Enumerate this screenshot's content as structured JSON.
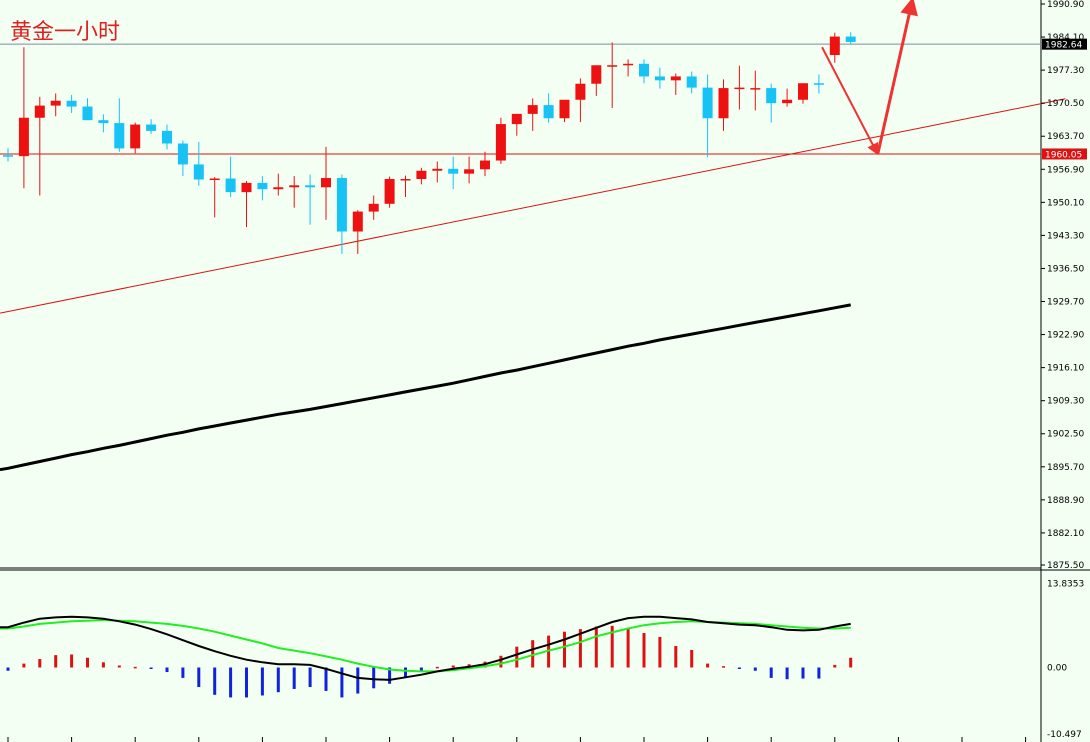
{
  "title": "黄金一小时",
  "colors": {
    "background": "#f2fff2",
    "bull": "#ee1111",
    "bear": "#17c2f5",
    "ma": "#000000",
    "annotation": "#ee3333",
    "macd_up": "#dd1111",
    "macd_down": "#1122dd",
    "signal": "#22ee22",
    "macd_line": "#000000"
  },
  "price_axis": {
    "ticks": [
      "1990.90",
      "1984.10",
      "1977.30",
      "1970.50",
      "1963.70",
      "1956.90",
      "1950.10",
      "1943.30",
      "1936.50",
      "1929.70",
      "1922.90",
      "1916.10",
      "1909.30",
      "1902.50",
      "1895.70",
      "1888.90",
      "1882.10",
      "1875.50"
    ],
    "current_price": "1982.64",
    "level_price": "1960.05"
  },
  "indicator_axis": {
    "ticks": [
      "13.8353",
      "0.00",
      "-10.497"
    ]
  },
  "chart_data": {
    "type": "candlestick",
    "title": "黄金一小时",
    "ylim": [
      1875.5,
      1992.0
    ],
    "candles": [
      [
        1959.8,
        1961.2,
        1958.5,
        1959.6
      ],
      [
        1959.6,
        1982.0,
        1953.0,
        1967.5
      ],
      [
        1967.5,
        1971.8,
        1951.5,
        1970.0
      ],
      [
        1970.0,
        1972.5,
        1967.8,
        1971.0
      ],
      [
        1971.0,
        1972.2,
        1968.5,
        1969.8
      ],
      [
        1969.8,
        1971.5,
        1967.0,
        1967.0
      ],
      [
        1967.0,
        1968.2,
        1964.5,
        1966.4
      ],
      [
        1966.4,
        1971.5,
        1960.5,
        1961.2
      ],
      [
        1961.2,
        1966.5,
        1960.2,
        1966.1
      ],
      [
        1966.1,
        1967.2,
        1964.2,
        1964.8
      ],
      [
        1964.8,
        1966.1,
        1961.0,
        1962.2
      ],
      [
        1962.2,
        1962.8,
        1955.5,
        1957.9
      ],
      [
        1957.9,
        1962.5,
        1953.5,
        1954.8
      ],
      [
        1954.8,
        1955.3,
        1947.0,
        1955.0
      ],
      [
        1955.0,
        1959.5,
        1951.2,
        1952.2
      ],
      [
        1952.2,
        1954.5,
        1945.0,
        1954.1
      ],
      [
        1954.1,
        1955.5,
        1950.5,
        1952.8
      ],
      [
        1952.8,
        1956.0,
        1951.5,
        1953.2
      ],
      [
        1953.2,
        1955.5,
        1949.0,
        1953.6
      ],
      [
        1953.6,
        1955.8,
        1945.5,
        1953.2
      ],
      [
        1953.2,
        1961.5,
        1946.5,
        1955.1
      ],
      [
        1955.1,
        1955.8,
        1939.5,
        1944.1
      ],
      [
        1944.1,
        1948.5,
        1939.5,
        1948.2
      ],
      [
        1948.2,
        1951.5,
        1946.5,
        1949.8
      ],
      [
        1949.8,
        1955.4,
        1949.0,
        1954.9
      ],
      [
        1954.9,
        1955.6,
        1951.2,
        1954.9
      ],
      [
        1954.9,
        1957.2,
        1953.8,
        1956.6
      ],
      [
        1956.6,
        1958.5,
        1954.2,
        1957.0
      ],
      [
        1957.0,
        1959.5,
        1952.8,
        1956.0
      ],
      [
        1956.0,
        1959.5,
        1954.0,
        1956.9
      ],
      [
        1956.9,
        1960.5,
        1955.5,
        1958.7
      ],
      [
        1958.7,
        1967.5,
        1958.0,
        1966.2
      ],
      [
        1966.2,
        1968.2,
        1963.8,
        1968.3
      ],
      [
        1968.3,
        1971.5,
        1964.8,
        1970.1
      ],
      [
        1970.1,
        1972.5,
        1966.5,
        1967.4
      ],
      [
        1967.4,
        1970.5,
        1966.6,
        1971.2
      ],
      [
        1971.2,
        1975.6,
        1966.6,
        1974.5
      ],
      [
        1974.5,
        1978.3,
        1972.0,
        1978.3
      ],
      [
        1978.3,
        1983.0,
        1969.5,
        1978.3
      ],
      [
        1978.3,
        1979.5,
        1976.0,
        1978.6
      ],
      [
        1978.6,
        1979.5,
        1974.6,
        1976.0
      ],
      [
        1976.0,
        1977.8,
        1973.5,
        1975.2
      ],
      [
        1975.2,
        1976.6,
        1972.2,
        1976.0
      ],
      [
        1976.0,
        1977.0,
        1972.5,
        1973.7
      ],
      [
        1973.7,
        1976.4,
        1959.4,
        1967.4
      ],
      [
        1967.4,
        1975.4,
        1964.8,
        1973.6
      ],
      [
        1973.6,
        1978.2,
        1969.2,
        1973.7
      ],
      [
        1973.6,
        1977.2,
        1969.0,
        1973.6
      ],
      [
        1973.6,
        1974.5,
        1966.5,
        1970.5
      ],
      [
        1970.5,
        1973.5,
        1969.8,
        1971.2
      ],
      [
        1971.2,
        1974.6,
        1970.4,
        1974.6
      ],
      [
        1974.6,
        1976.4,
        1972.5,
        1974.3
      ],
      [
        1980.4,
        1985.0,
        1978.8,
        1984.2
      ],
      [
        1984.2,
        1985.1,
        1982.6,
        1983.1
      ]
    ],
    "moving_average": [
      1895.4,
      1896.1,
      1896.8,
      1897.5,
      1898.2,
      1898.8,
      1899.5,
      1900.1,
      1900.8,
      1901.5,
      1902.2,
      1902.8,
      1903.5,
      1904.1,
      1904.7,
      1905.3,
      1905.9,
      1906.5,
      1907.0,
      1907.5,
      1908.1,
      1908.7,
      1909.3,
      1909.9,
      1910.5,
      1911.1,
      1911.7,
      1912.3,
      1912.9,
      1913.6,
      1914.3,
      1915.0,
      1915.6,
      1916.3,
      1917.0,
      1917.7,
      1918.4,
      1919.1,
      1919.8,
      1920.5,
      1921.1,
      1921.8,
      1922.4,
      1923.0,
      1923.6,
      1924.2,
      1924.8,
      1925.4,
      1926.0,
      1926.6,
      1927.2,
      1927.8,
      1928.4,
      1929.0
    ],
    "trendline": {
      "from": [
        -0.5,
        1927.3
      ],
      "to": [
        66.5,
        1971.4
      ]
    },
    "arrows": [
      {
        "from": [
          51.2,
          1982.0
        ],
        "to": [
          54.7,
          1960.0
        ]
      },
      {
        "from": [
          54.7,
          1960.0
        ],
        "to": [
          56.9,
          1992.0
        ]
      }
    ],
    "indicator": {
      "ylim": [
        -10.497,
        13.8353
      ],
      "histogram": [
        -0.5,
        0.6,
        1.3,
        1.9,
        2.0,
        1.5,
        0.8,
        0.3,
        0.1,
        -0.2,
        -0.7,
        -1.6,
        -3.0,
        -4.2,
        -4.6,
        -4.6,
        -4.3,
        -3.8,
        -3.3,
        -3.0,
        -3.6,
        -4.6,
        -4.0,
        -3.2,
        -2.5,
        -1.5,
        -0.6,
        0.1,
        0.3,
        0.5,
        0.9,
        1.8,
        3.2,
        4.2,
        4.9,
        5.5,
        5.9,
        6.3,
        6.4,
        6.1,
        5.3,
        4.7,
        3.3,
        2.7,
        0.6,
        0.2,
        -0.2,
        -0.5,
        -1.6,
        -1.8,
        -1.7,
        -1.7,
        0.4,
        1.5
      ],
      "macd_line": [
        6.2,
        6.9,
        7.5,
        7.7,
        7.8,
        7.7,
        7.5,
        7.1,
        6.6,
        5.9,
        5.1,
        4.2,
        3.3,
        2.5,
        1.8,
        1.2,
        0.8,
        0.5,
        0.5,
        0.4,
        -0.2,
        -0.9,
        -1.6,
        -1.8,
        -1.9,
        -1.5,
        -1.1,
        -0.6,
        -0.2,
        0.1,
        0.5,
        1.2,
        2.0,
        2.8,
        3.5,
        4.3,
        5.2,
        6.1,
        7.0,
        7.6,
        7.8,
        7.8,
        7.6,
        7.4,
        7.0,
        6.8,
        6.6,
        6.5,
        6.2,
        5.8,
        5.7,
        5.8,
        6.3,
        6.7
      ],
      "signal_line": [
        6.0,
        6.3,
        6.7,
        6.9,
        7.1,
        7.2,
        7.3,
        7.2,
        7.1,
        6.9,
        6.7,
        6.4,
        6.0,
        5.5,
        4.9,
        4.3,
        3.7,
        3.0,
        2.6,
        2.2,
        1.7,
        1.2,
        0.6,
        0.1,
        -0.3,
        -0.5,
        -0.6,
        -0.6,
        -0.4,
        -0.1,
        0.2,
        0.6,
        1.2,
        1.9,
        2.6,
        3.2,
        3.9,
        4.8,
        5.4,
        6.0,
        6.5,
        6.8,
        7.0,
        7.1,
        7.0,
        6.9,
        6.8,
        6.7,
        6.5,
        6.3,
        6.1,
        6.0,
        6.0,
        6.1
      ]
    }
  }
}
